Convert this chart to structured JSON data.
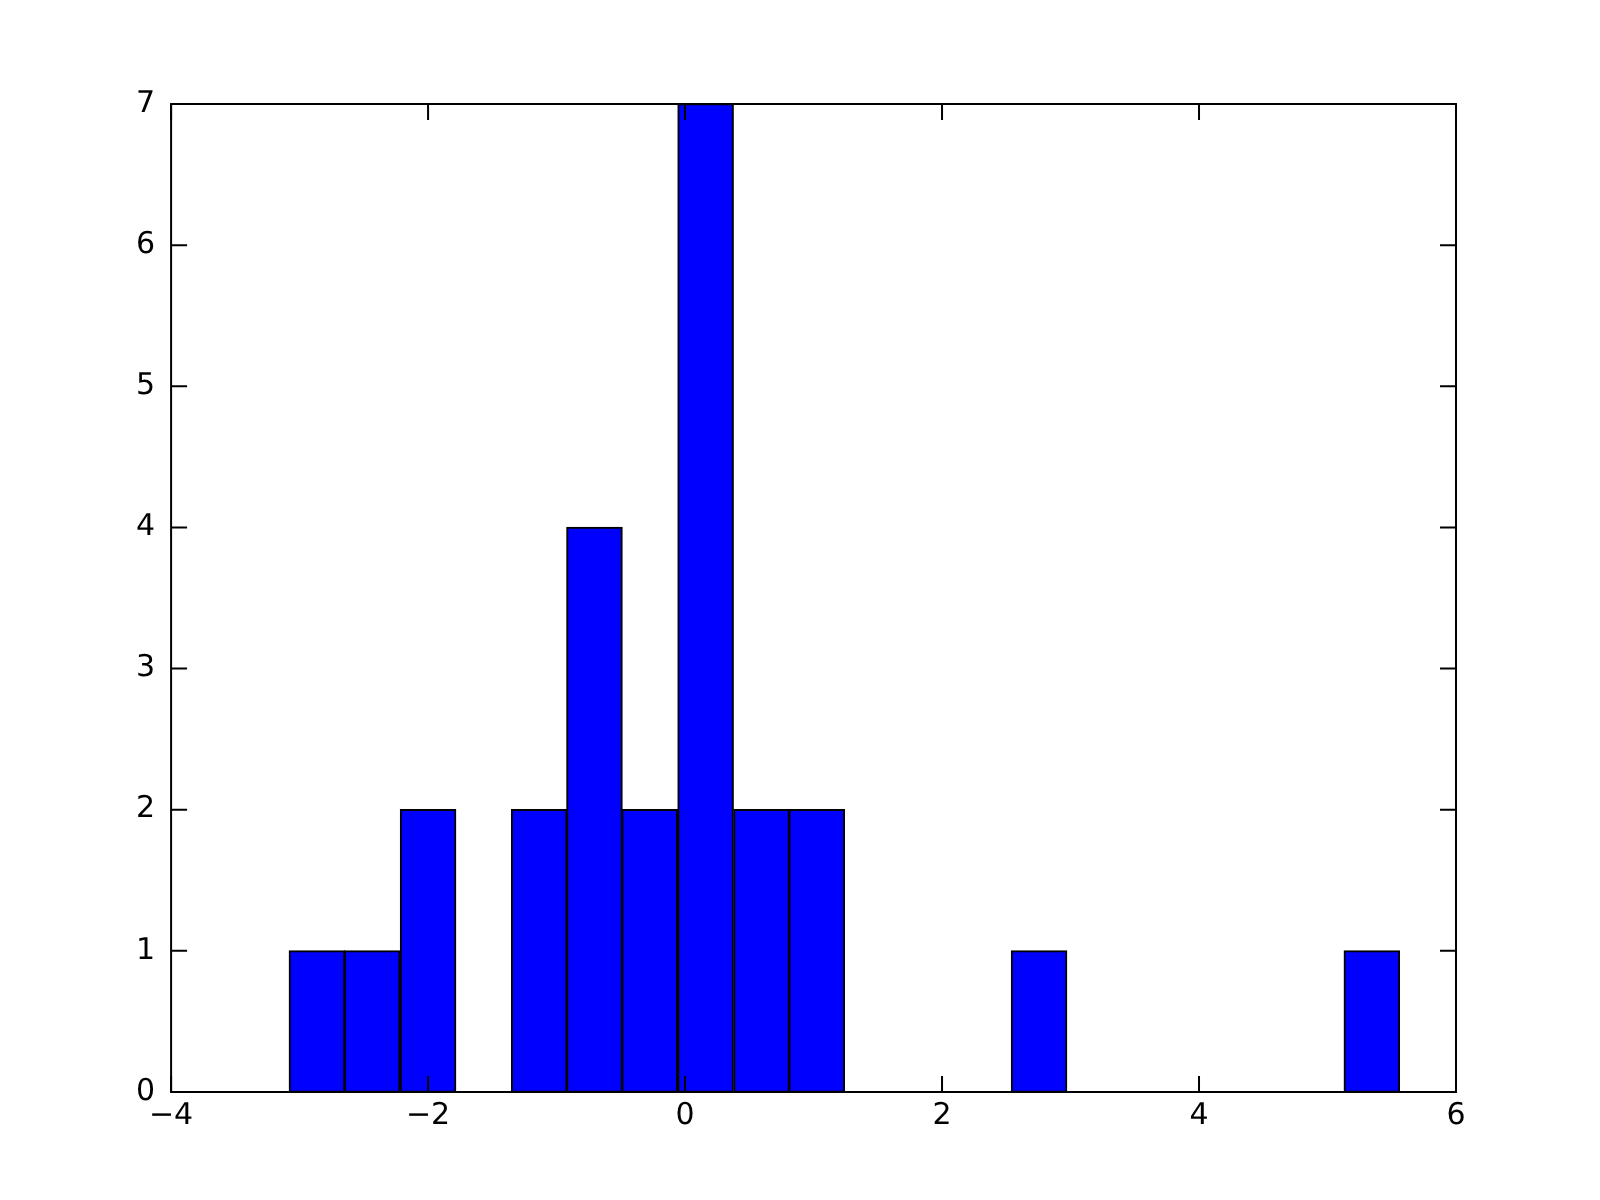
{
  "chart_data": {
    "type": "histogram",
    "bins": [
      -3.08,
      -2.65,
      -2.22,
      -1.78,
      -1.35,
      -0.92,
      -0.49,
      -0.06,
      0.38,
      0.81,
      1.24,
      1.67,
      2.11,
      2.54,
      2.97,
      3.4,
      3.84,
      4.27,
      4.7,
      5.13,
      5.56
    ],
    "values": [
      1,
      1,
      2,
      0,
      2,
      4,
      2,
      7,
      2,
      2,
      0,
      0,
      0,
      1,
      0,
      0,
      0,
      0,
      0,
      1
    ],
    "color": "#0000ff",
    "xlim": [
      -4,
      6
    ],
    "xticks": [
      {
        "value": -4,
        "label": "−4"
      },
      {
        "value": -2,
        "label": "−2"
      },
      0,
      2,
      4,
      6
    ],
    "ylim": [
      0,
      7
    ],
    "yticks": [
      0,
      1,
      2,
      3,
      4,
      5,
      6,
      7
    ],
    "grid": false,
    "legend": false
  }
}
